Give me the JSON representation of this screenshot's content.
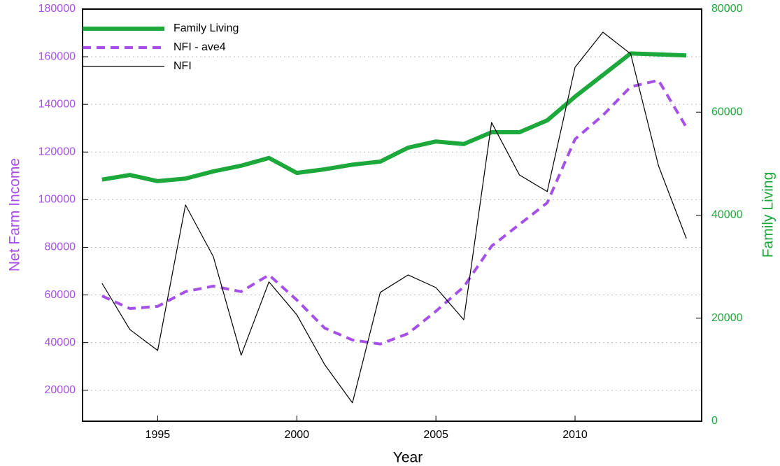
{
  "chart_data": {
    "type": "line",
    "x": [
      1993,
      1994,
      1995,
      1996,
      1997,
      1998,
      1999,
      2000,
      2001,
      2002,
      2003,
      2004,
      2005,
      2006,
      2007,
      2008,
      2009,
      2010,
      2011,
      2012,
      2013,
      2014
    ],
    "xlim": [
      1992.3,
      2014.55
    ],
    "xticks": [
      1995,
      2000,
      2005,
      2010
    ],
    "xlabel": "Year",
    "ylim": [
      7000,
      180000
    ],
    "yticks": [
      20000,
      40000,
      60000,
      80000,
      100000,
      120000,
      140000,
      160000,
      180000
    ],
    "ylabel": "Net Farm Income",
    "ylabel_color": "#a550e8",
    "y2lim": [
      0,
      80000
    ],
    "y2ticks": [
      0,
      20000,
      40000,
      60000,
      80000
    ],
    "y2label": "Family Living",
    "y2label_color": "#1ca83a",
    "grid": true,
    "legend": "upper left",
    "series": [
      {
        "name": "Family Living",
        "color": "#1ca83a",
        "axis": "y2",
        "style": "solid",
        "values": [
          46900,
          47800,
          46600,
          47100,
          48500,
          49600,
          51100,
          48200,
          48900,
          49800,
          50400,
          53100,
          54300,
          53800,
          56100,
          56100,
          58400,
          63000,
          67200,
          71400,
          71200,
          71000
        ]
      },
      {
        "name": "NFI - ave4",
        "color": "#a550e8",
        "style": "dashed",
        "values": [
          59600,
          54300,
          55200,
          61400,
          63700,
          61400,
          68400,
          57900,
          46100,
          41100,
          39400,
          43800,
          53200,
          63400,
          80500,
          89600,
          98700,
          125400,
          135400,
          147400,
          150100,
          130400
        ]
      },
      {
        "name": "NFI",
        "color": "#000000",
        "style": "solid",
        "values": [
          64900,
          45500,
          36700,
          97800,
          76100,
          34700,
          65500,
          51700,
          30800,
          14700,
          61100,
          68400,
          63100,
          49600,
          132400,
          110400,
          103400,
          155600,
          170300,
          161200,
          114200,
          83700
        ]
      }
    ]
  }
}
